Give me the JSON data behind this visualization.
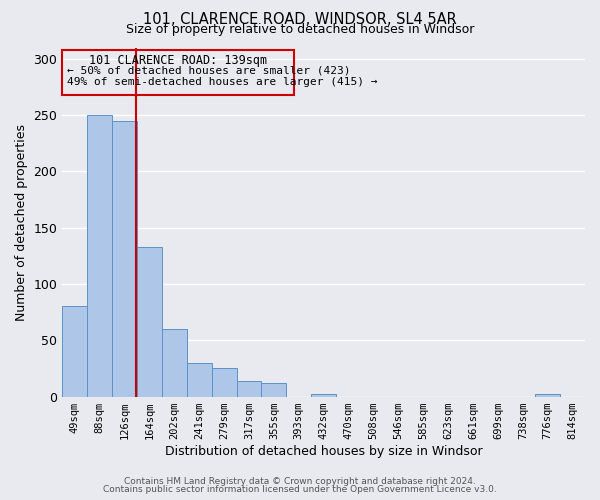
{
  "title": "101, CLARENCE ROAD, WINDSOR, SL4 5AR",
  "subtitle": "Size of property relative to detached houses in Windsor",
  "xlabel": "Distribution of detached houses by size in Windsor",
  "ylabel": "Number of detached properties",
  "bar_labels": [
    "49sqm",
    "88sqm",
    "126sqm",
    "164sqm",
    "202sqm",
    "241sqm",
    "279sqm",
    "317sqm",
    "355sqm",
    "393sqm",
    "432sqm",
    "470sqm",
    "508sqm",
    "546sqm",
    "585sqm",
    "623sqm",
    "661sqm",
    "699sqm",
    "738sqm",
    "776sqm",
    "814sqm"
  ],
  "bar_values": [
    80,
    250,
    245,
    133,
    60,
    30,
    25,
    14,
    12,
    0,
    2,
    0,
    0,
    0,
    0,
    0,
    0,
    0,
    0,
    2,
    0
  ],
  "bar_color": "#aec6e8",
  "bar_edge_color": "#5a93c8",
  "bg_color": "#e8eaf0",
  "grid_color": "#ffffff",
  "ylim": [
    0,
    310
  ],
  "yticks": [
    0,
    50,
    100,
    150,
    200,
    250,
    300
  ],
  "annotation_title": "101 CLARENCE ROAD: 139sqm",
  "annotation_line1": "← 50% of detached houses are smaller (423)",
  "annotation_line2": "49% of semi-detached houses are larger (415) →",
  "vline_x": 2.45,
  "vline_color": "#cc0000",
  "box_color": "#cc0000",
  "footer1": "Contains HM Land Registry data © Crown copyright and database right 2024.",
  "footer2": "Contains public sector information licensed under the Open Government Licence v3.0."
}
